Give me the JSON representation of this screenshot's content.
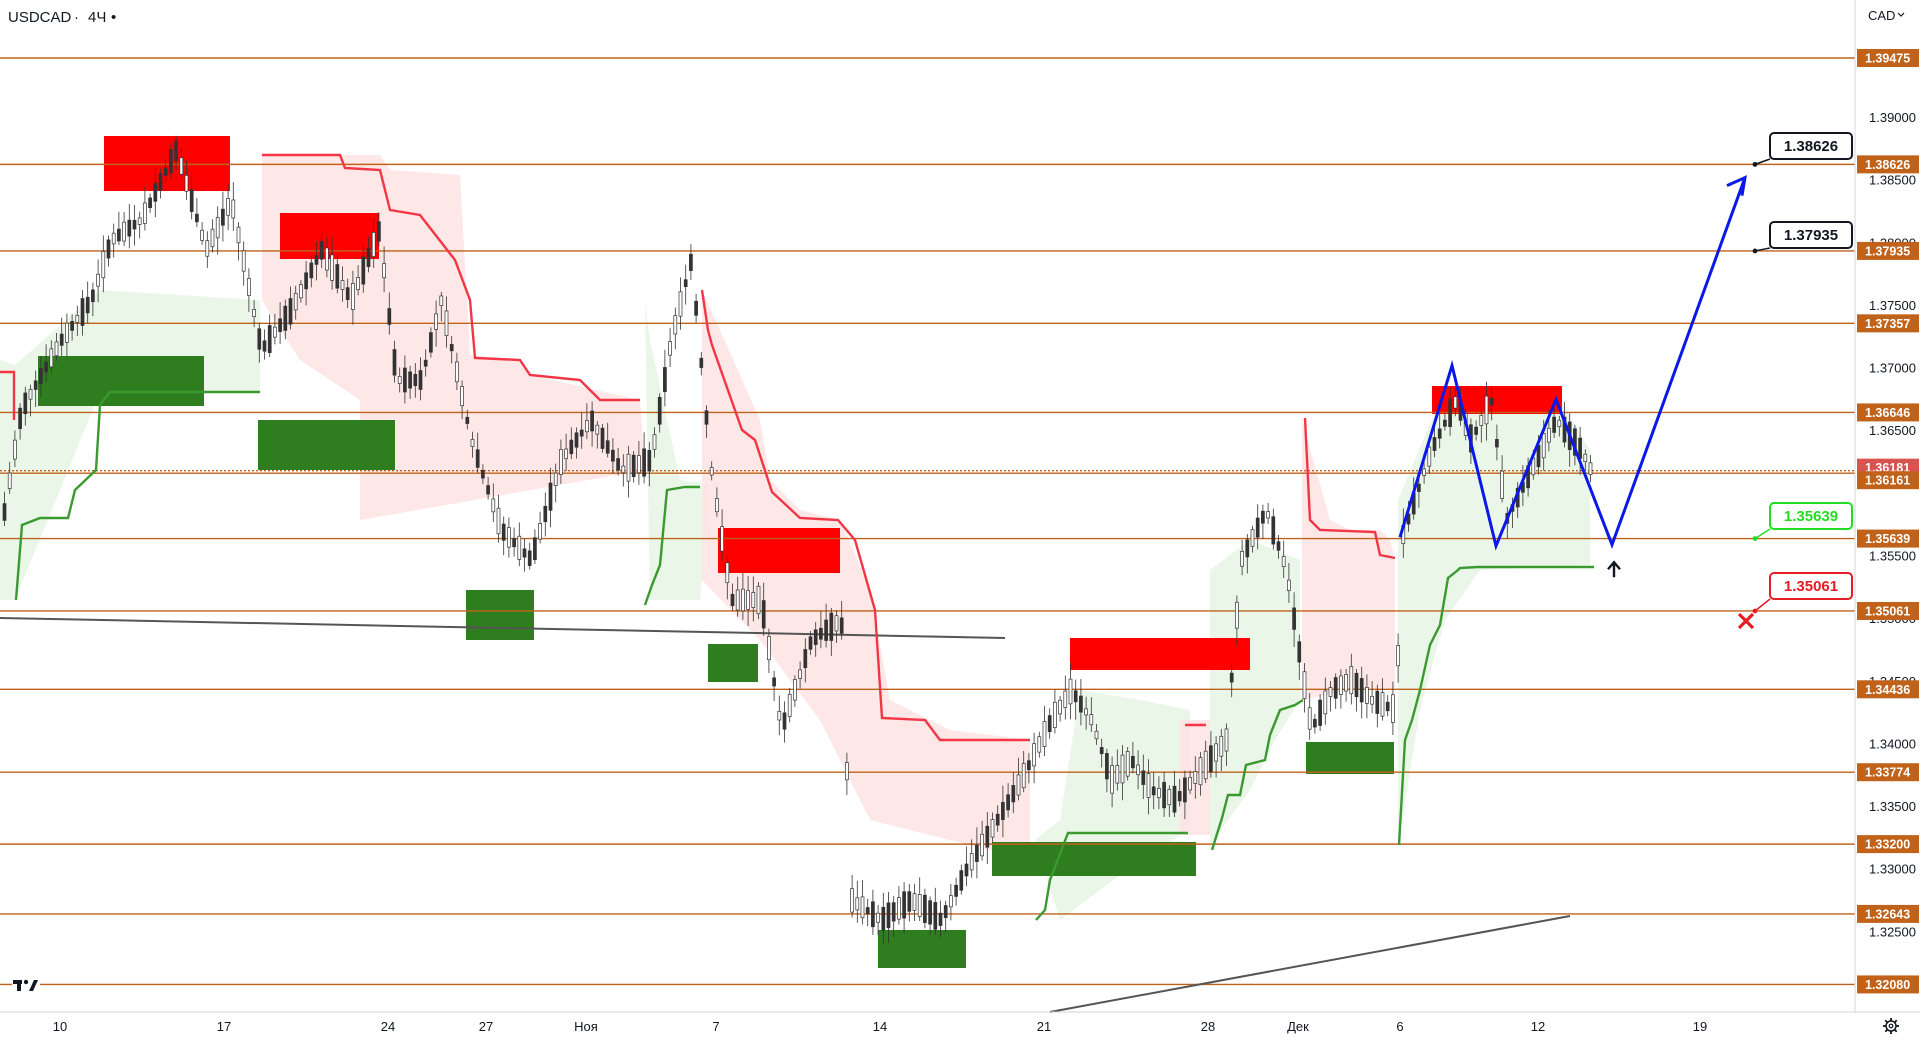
{
  "header": {
    "symbol": "USDCAD",
    "separator": "·",
    "interval": "4Ч",
    "dot": "•",
    "currency": "CAD",
    "currency_chevron": "chevron-down-icon"
  },
  "footer": {
    "logo_icon": "tradingview-logo-icon",
    "settings_icon": "gear-icon"
  },
  "colors": {
    "level_line": "#c0621a",
    "level_badge": "#c0621a",
    "current_badge": "#d9534f",
    "support_zone": "#2e7d1f",
    "resistance_zone": "#ff0000",
    "supertrend_up": "#3a9a2f",
    "supertrend_down": "#f23645",
    "fill_up": "#e8f5e6",
    "fill_down": "#fde4e4",
    "projection": "#0a18e8",
    "trendline": "#555555",
    "callout_green": "#22dd22",
    "callout_red": "#e41c24",
    "callout_black": "#131722",
    "candle": "#333333"
  },
  "chart_data": {
    "type": "candlestick",
    "symbol": "USDCAD",
    "interval": "4Ч",
    "ylim": [
      1.3186,
      1.39938
    ],
    "y_ticks": [
      "1.39000",
      "1.38500",
      "1.38000",
      "1.37500",
      "1.37000",
      "1.36500",
      "1.35500",
      "1.35000",
      "1.34500",
      "1.34000",
      "1.33500",
      "1.33000",
      "1.32500"
    ],
    "x_ticks": [
      "10",
      "17",
      "24",
      "27",
      "Ноя",
      "7",
      "14",
      "21",
      "28",
      "Дек",
      "6",
      "12",
      "19"
    ],
    "levels": [
      1.39475,
      1.38626,
      1.37935,
      1.37357,
      1.36646,
      1.36181,
      1.36161,
      1.35639,
      1.35061,
      1.34436,
      1.33774,
      1.332,
      1.32643,
      1.3208
    ],
    "level_labels": [
      "1.39475",
      "1.38626",
      "1.37935",
      "1.37357",
      "1.36646",
      "1.36181",
      "1.36161",
      "1.35639",
      "1.35061",
      "1.34436",
      "1.33774",
      "1.33200",
      "1.32643",
      "1.32080"
    ],
    "current_price": 1.36181,
    "current_price_label": "1.36181",
    "targets": [
      {
        "label": "1.38626",
        "value": 1.38626,
        "kind": "take-profit"
      },
      {
        "label": "1.37935",
        "value": 1.37935,
        "kind": "take-profit"
      },
      {
        "label": "1.35639",
        "value": 1.35639,
        "kind": "entry"
      },
      {
        "label": "1.35061",
        "value": 1.35061,
        "kind": "stop-loss"
      }
    ],
    "projection_path": [
      1.3565,
      1.3702,
      1.3558,
      1.3675,
      1.3559,
      1.3852
    ],
    "grid": false
  }
}
